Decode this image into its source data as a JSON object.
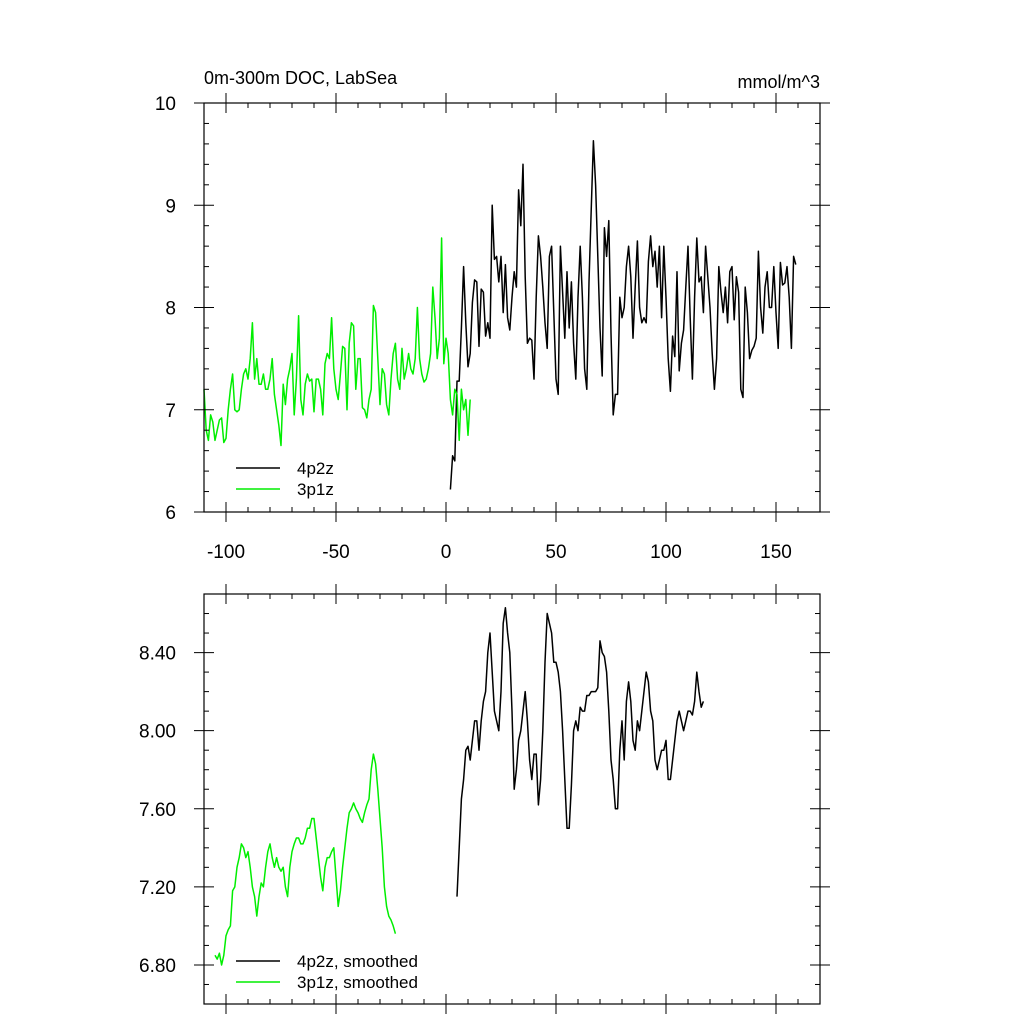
{
  "chart_data": [
    {
      "type": "line",
      "title": "0m-300m DOC, LabSea",
      "units": "mmol/m^3",
      "xlim": [
        -110,
        170
      ],
      "ylim": [
        6,
        10
      ],
      "x_ticks": [
        -100,
        -50,
        0,
        50,
        100,
        150
      ],
      "x_tick_labels": [
        "-100",
        "-50",
        "0",
        "50",
        "100",
        "150"
      ],
      "y_ticks": [
        6,
        7,
        8,
        9,
        10
      ],
      "y_tick_labels": [
        "6",
        "7",
        "8",
        "9",
        "10"
      ],
      "grid": false,
      "legend_position": "bottom-left",
      "series": [
        {
          "name": "4p2z",
          "color": "#000000",
          "x_start": 2,
          "x_step": 1,
          "values": [
            6.22,
            6.55,
            6.5,
            7.28,
            7.28,
            7.8,
            8.4,
            7.85,
            7.42,
            7.55,
            8.05,
            8.27,
            8.25,
            7.62,
            8.18,
            8.15,
            7.72,
            7.85,
            7.7,
            9.0,
            8.47,
            8.5,
            8.25,
            8.5,
            7.95,
            8.42,
            7.9,
            7.78,
            8.1,
            8.35,
            8.2,
            9.15,
            8.8,
            9.4,
            8.3,
            7.65,
            7.7,
            7.68,
            7.3,
            8.1,
            8.7,
            8.5,
            8.2,
            7.85,
            7.6,
            8.5,
            8.6,
            7.95,
            7.3,
            7.15,
            8.6,
            8.15,
            7.7,
            8.35,
            7.8,
            8.25,
            7.65,
            7.3,
            8.1,
            8.6,
            8.1,
            7.4,
            7.2,
            8.25,
            8.95,
            9.63,
            9.2,
            8.5,
            7.8,
            7.33,
            8.78,
            8.5,
            8.85,
            7.75,
            6.95,
            7.15,
            7.15,
            8.1,
            7.9,
            8.0,
            8.4,
            8.6,
            8.3,
            7.7,
            8.2,
            8.65,
            8.0,
            7.85,
            7.9,
            7.85,
            8.45,
            8.7,
            8.4,
            8.55,
            8.2,
            8.6,
            7.9,
            8.6,
            8.1,
            7.5,
            7.18,
            7.72,
            7.52,
            8.35,
            7.38,
            7.65,
            7.78,
            8.2,
            8.6,
            7.9,
            7.3,
            8.1,
            8.68,
            8.25,
            8.3,
            7.95,
            8.6,
            8.3,
            8.0,
            7.55,
            7.2,
            7.5,
            8.4,
            8.15,
            7.95,
            8.2,
            7.85,
            8.35,
            8.4,
            7.88,
            8.3,
            8.15,
            7.2,
            7.12,
            8.2,
            7.95,
            7.5,
            7.58,
            7.62,
            7.7,
            8.55,
            8.0,
            7.75,
            8.2,
            8.35,
            8.0,
            8.0,
            8.4,
            7.95,
            7.6,
            8.44,
            8.22,
            8.24,
            8.4,
            8.1,
            7.6,
            8.5,
            8.42
          ]
        },
        {
          "name": "3p1z",
          "color": "#00ee00",
          "x_start": -110,
          "x_step": 1,
          "values": [
            7.2,
            6.8,
            6.7,
            6.95,
            6.88,
            6.7,
            6.8,
            6.9,
            6.92,
            6.68,
            6.72,
            7.0,
            7.2,
            7.35,
            7.0,
            6.98,
            7.0,
            7.2,
            7.35,
            7.4,
            7.3,
            7.5,
            7.85,
            7.3,
            7.5,
            7.25,
            7.25,
            7.35,
            7.2,
            7.2,
            7.3,
            7.5,
            7.15,
            7.0,
            6.85,
            6.65,
            7.25,
            7.05,
            7.3,
            7.4,
            7.55,
            6.95,
            7.3,
            7.92,
            7.1,
            6.95,
            7.25,
            7.35,
            7.28,
            7.3,
            6.98,
            7.3,
            7.3,
            7.2,
            6.95,
            7.45,
            7.55,
            7.5,
            7.9,
            7.4,
            7.2,
            7.1,
            7.35,
            7.62,
            7.6,
            7.0,
            7.65,
            7.85,
            7.82,
            7.2,
            7.5,
            7.5,
            7.02,
            7.0,
            6.92,
            7.1,
            7.2,
            8.02,
            7.95,
            7.5,
            7.05,
            7.4,
            7.35,
            7.05,
            6.95,
            7.3,
            7.55,
            7.65,
            7.3,
            7.2,
            7.6,
            7.3,
            7.4,
            7.55,
            7.4,
            7.35,
            7.5,
            8.0,
            7.5,
            7.35,
            7.27,
            7.3,
            7.4,
            7.55,
            8.2,
            7.9,
            7.5,
            7.7,
            8.68,
            7.45,
            7.7,
            7.55,
            7.1,
            6.95,
            7.2,
            7.15,
            6.7,
            7.2,
            7.0,
            7.1,
            6.75,
            7.1
          ]
        }
      ]
    },
    {
      "type": "line",
      "xlim": [
        -110,
        170
      ],
      "ylim": [
        6.6,
        8.7
      ],
      "x_ticks": [
        -100,
        -50,
        0,
        50,
        100,
        150
      ],
      "y_ticks": [
        6.8,
        7.2,
        7.6,
        8.0,
        8.4
      ],
      "y_tick_labels": [
        "6.80",
        "7.20",
        "7.60",
        "8.00",
        "8.40"
      ],
      "grid": false,
      "legend_position": "bottom-left",
      "series": [
        {
          "name": "4p2z, smoothed",
          "color": "#000000",
          "x_start": 5,
          "x_step": 1,
          "values": [
            7.15,
            7.4,
            7.65,
            7.75,
            7.9,
            7.92,
            7.85,
            7.95,
            8.05,
            8.05,
            7.9,
            8.05,
            8.15,
            8.2,
            8.4,
            8.5,
            8.3,
            8.1,
            8.05,
            8.0,
            8.2,
            8.55,
            8.63,
            8.5,
            8.4,
            8.1,
            7.7,
            7.8,
            7.95,
            8.0,
            8.1,
            8.2,
            8.05,
            7.85,
            7.75,
            7.88,
            7.88,
            7.62,
            7.75,
            8.0,
            8.35,
            8.6,
            8.55,
            8.5,
            8.35,
            8.35,
            8.3,
            8.2,
            8.0,
            7.75,
            7.5,
            7.5,
            7.72,
            8.0,
            8.05,
            8.0,
            8.12,
            8.1,
            8.1,
            8.18,
            8.18,
            8.2,
            8.2,
            8.2,
            8.22,
            8.46,
            8.4,
            8.38,
            8.3,
            8.1,
            7.85,
            7.75,
            7.6,
            7.6,
            7.9,
            8.05,
            7.85,
            8.15,
            8.25,
            8.15,
            7.95,
            7.9,
            8.05,
            8.0,
            8.1,
            8.2,
            8.3,
            8.25,
            8.1,
            8.05,
            7.85,
            7.8,
            7.85,
            7.9,
            7.9,
            7.95,
            7.75,
            7.75,
            7.85,
            7.95,
            8.05,
            8.1,
            8.05,
            8.0,
            8.05,
            8.1,
            8.1,
            8.08,
            8.15,
            8.3,
            8.2,
            8.12,
            8.15
          ]
        },
        {
          "name": "3p1z, smoothed",
          "color": "#00ee00",
          "x_start": -105,
          "x_step": 1,
          "values": [
            6.85,
            6.83,
            6.86,
            6.8,
            6.85,
            6.95,
            6.98,
            7.0,
            7.18,
            7.2,
            7.3,
            7.35,
            7.42,
            7.4,
            7.35,
            7.38,
            7.3,
            7.2,
            7.15,
            7.05,
            7.15,
            7.22,
            7.2,
            7.3,
            7.38,
            7.42,
            7.35,
            7.3,
            7.35,
            7.3,
            7.28,
            7.3,
            7.2,
            7.15,
            7.3,
            7.38,
            7.42,
            7.45,
            7.45,
            7.42,
            7.42,
            7.45,
            7.5,
            7.5,
            7.55,
            7.55,
            7.45,
            7.35,
            7.25,
            7.18,
            7.3,
            7.35,
            7.35,
            7.38,
            7.4,
            7.25,
            7.1,
            7.18,
            7.3,
            7.4,
            7.5,
            7.58,
            7.6,
            7.63,
            7.6,
            7.58,
            7.55,
            7.53,
            7.58,
            7.62,
            7.65,
            7.8,
            7.88,
            7.83,
            7.7,
            7.55,
            7.4,
            7.2,
            7.1,
            7.05,
            7.03,
            7.0,
            6.96
          ]
        }
      ]
    }
  ]
}
